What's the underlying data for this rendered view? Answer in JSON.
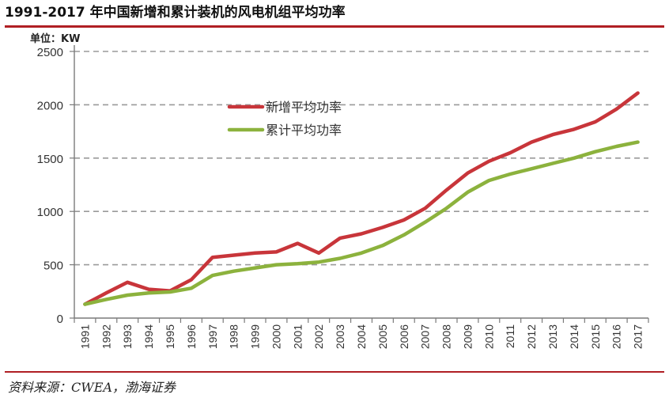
{
  "header": {
    "title": "1991-2017 年中国新增和累计装机的风电机组平均功率"
  },
  "footer": {
    "source": "资料来源：CWEA，渤海证券"
  },
  "colors": {
    "accent": "#b01f24",
    "series_new": "#c8353a",
    "series_cumulative": "#8cb23d",
    "grid": "#9a9a9a"
  },
  "chart_data": {
    "type": "line",
    "unit_label": "单位：KW",
    "x": [
      "1991",
      "1992",
      "1993",
      "1994",
      "1995",
      "1996",
      "1997",
      "1998",
      "1999",
      "2000",
      "2001",
      "2002",
      "2003",
      "2004",
      "2005",
      "2006",
      "2007",
      "2008",
      "2009",
      "2010",
      "2011",
      "2012",
      "2013",
      "2014",
      "2015",
      "2016",
      "2017"
    ],
    "ylim": [
      0,
      2500
    ],
    "yticks": [
      0,
      500,
      1000,
      1500,
      2000,
      2500
    ],
    "grid": true,
    "legend_position": "top-center",
    "series": [
      {
        "name": "新增平均功率",
        "color": "#c8353a",
        "values": [
          130,
          235,
          335,
          270,
          255,
          360,
          570,
          590,
          610,
          620,
          700,
          610,
          750,
          790,
          850,
          920,
          1030,
          1200,
          1360,
          1470,
          1550,
          1650,
          1720,
          1770,
          1840,
          1960,
          2110
        ]
      },
      {
        "name": "累计平均功率",
        "color": "#8cb23d",
        "values": [
          130,
          175,
          215,
          235,
          245,
          280,
          400,
          440,
          470,
          500,
          510,
          525,
          560,
          610,
          680,
          780,
          900,
          1030,
          1180,
          1290,
          1350,
          1400,
          1450,
          1500,
          1560,
          1610,
          1650
        ]
      }
    ]
  }
}
